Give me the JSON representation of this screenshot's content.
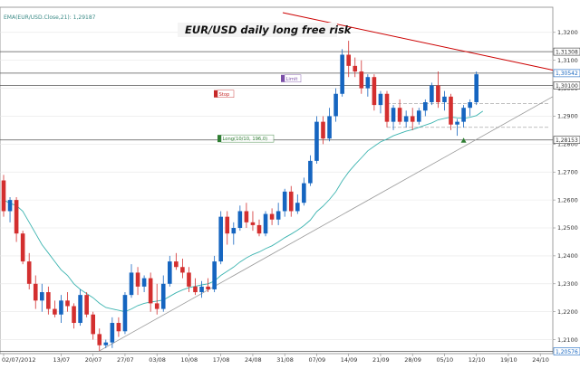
{
  "indicator_label": "EMA(EUR/USD.Close,21): 1,29187",
  "chart_data": {
    "type": "candlestick",
    "title": "EUR/USD daily long free risk",
    "xlabel": "",
    "ylabel": "",
    "ylim": [
      1.205,
      1.329
    ],
    "y_ticks": [
      "1,3200",
      "1,3100",
      "1,3000",
      "1,2900",
      "1,2800",
      "1,2700",
      "1,2600",
      "1,2500",
      "1,2400",
      "1,2300",
      "1,2200",
      "1,2100"
    ],
    "y_tick_values": [
      1.32,
      1.31,
      1.3,
      1.29,
      1.28,
      1.27,
      1.26,
      1.25,
      1.24,
      1.23,
      1.22,
      1.21
    ],
    "x_ticks": [
      "02/07/2012",
      "13/07",
      "20/07",
      "27/07",
      "03/08",
      "10/08",
      "17/08",
      "24/08",
      "31/08",
      "07/09",
      "14/09",
      "21/09",
      "28/09",
      "05/10",
      "12/10",
      "19/10",
      "24/10"
    ],
    "x_tick_index": [
      0,
      9,
      14,
      19,
      24,
      29,
      34,
      39,
      44,
      49,
      54,
      59,
      64,
      69,
      74,
      79,
      84
    ],
    "price_tags": [
      {
        "text": "1,31308",
        "value": 1.3131,
        "color": "#333333"
      },
      {
        "text": "1,30542",
        "value": 1.3054,
        "color": "#1565c0"
      },
      {
        "text": "1,30100",
        "value": 1.301,
        "color": "#333333"
      },
      {
        "text": "1,28153",
        "value": 1.2815,
        "color": "#333333"
      },
      {
        "text": "1,20576",
        "value": 1.2058,
        "color": "#1565c0"
      }
    ],
    "annotations": [
      {
        "text": "Limit",
        "value": 1.3035,
        "color": "#7b4fa8"
      },
      {
        "text": "Stop",
        "value": 1.298,
        "color": "#c62828"
      },
      {
        "text": "Long(10/10, 196,0)",
        "value": 1.282,
        "color": "#2e7d32"
      }
    ],
    "colors": {
      "up": "#1565c0",
      "down": "#d32f2f",
      "ema": "#3cb4b0",
      "trend": "#999999",
      "resistance": "#cc0000"
    },
    "candles": [
      [
        1.267,
        1.269,
        1.254,
        1.256
      ],
      [
        1.256,
        1.261,
        1.252,
        1.26
      ],
      [
        1.26,
        1.261,
        1.245,
        1.248
      ],
      [
        1.248,
        1.249,
        1.237,
        1.238
      ],
      [
        1.238,
        1.241,
        1.228,
        1.23
      ],
      [
        1.23,
        1.233,
        1.221,
        1.224
      ],
      [
        1.224,
        1.23,
        1.22,
        1.227
      ],
      [
        1.227,
        1.229,
        1.219,
        1.221
      ],
      [
        1.221,
        1.224,
        1.218,
        1.219
      ],
      [
        1.219,
        1.226,
        1.216,
        1.224
      ],
      [
        1.224,
        1.227,
        1.22,
        1.222
      ],
      [
        1.222,
        1.223,
        1.214,
        1.216
      ],
      [
        1.216,
        1.228,
        1.215,
        1.226
      ],
      [
        1.226,
        1.227,
        1.218,
        1.219
      ],
      [
        1.219,
        1.22,
        1.21,
        1.212
      ],
      [
        1.212,
        1.214,
        1.206,
        1.208
      ],
      [
        1.208,
        1.21,
        1.207,
        1.209
      ],
      [
        1.209,
        1.218,
        1.207,
        1.216
      ],
      [
        1.216,
        1.218,
        1.211,
        1.213
      ],
      [
        1.213,
        1.227,
        1.212,
        1.226
      ],
      [
        1.226,
        1.237,
        1.225,
        1.234
      ],
      [
        1.234,
        1.236,
        1.226,
        1.229
      ],
      [
        1.229,
        1.233,
        1.227,
        1.232
      ],
      [
        1.232,
        1.234,
        1.22,
        1.223
      ],
      [
        1.223,
        1.23,
        1.219,
        1.221
      ],
      [
        1.221,
        1.233,
        1.22,
        1.23
      ],
      [
        1.23,
        1.24,
        1.229,
        1.238
      ],
      [
        1.238,
        1.241,
        1.235,
        1.236
      ],
      [
        1.236,
        1.239,
        1.232,
        1.234
      ],
      [
        1.234,
        1.236,
        1.227,
        1.229
      ],
      [
        1.229,
        1.232,
        1.226,
        1.227
      ],
      [
        1.227,
        1.231,
        1.225,
        1.229
      ],
      [
        1.229,
        1.232,
        1.227,
        1.228
      ],
      [
        1.228,
        1.24,
        1.227,
        1.238
      ],
      [
        1.238,
        1.256,
        1.237,
        1.254
      ],
      [
        1.254,
        1.256,
        1.244,
        1.248
      ],
      [
        1.248,
        1.252,
        1.244,
        1.25
      ],
      [
        1.25,
        1.258,
        1.249,
        1.256
      ],
      [
        1.256,
        1.259,
        1.25,
        1.252
      ],
      [
        1.252,
        1.256,
        1.249,
        1.251
      ],
      [
        1.251,
        1.253,
        1.247,
        1.248
      ],
      [
        1.248,
        1.256,
        1.247,
        1.255
      ],
      [
        1.255,
        1.257,
        1.251,
        1.253
      ],
      [
        1.253,
        1.259,
        1.251,
        1.256
      ],
      [
        1.256,
        1.264,
        1.254,
        1.263
      ],
      [
        1.263,
        1.265,
        1.254,
        1.256
      ],
      [
        1.256,
        1.262,
        1.255,
        1.259
      ],
      [
        1.259,
        1.268,
        1.258,
        1.266
      ],
      [
        1.266,
        1.276,
        1.265,
        1.274
      ],
      [
        1.274,
        1.29,
        1.273,
        1.288
      ],
      [
        1.288,
        1.29,
        1.28,
        1.282
      ],
      [
        1.282,
        1.293,
        1.281,
        1.29
      ],
      [
        1.29,
        1.3,
        1.288,
        1.298
      ],
      [
        1.298,
        1.314,
        1.297,
        1.312
      ],
      [
        1.312,
        1.317,
        1.304,
        1.308
      ],
      [
        1.308,
        1.311,
        1.304,
        1.306
      ],
      [
        1.306,
        1.31,
        1.298,
        1.3
      ],
      [
        1.3,
        1.305,
        1.297,
        1.304
      ],
      [
        1.304,
        1.305,
        1.292,
        1.294
      ],
      [
        1.294,
        1.299,
        1.291,
        1.298
      ],
      [
        1.298,
        1.299,
        1.286,
        1.288
      ],
      [
        1.288,
        1.294,
        1.285,
        1.293
      ],
      [
        1.293,
        1.296,
        1.287,
        1.288
      ],
      [
        1.288,
        1.292,
        1.286,
        1.29
      ],
      [
        1.29,
        1.293,
        1.285,
        1.288
      ],
      [
        1.288,
        1.293,
        1.287,
        1.292
      ],
      [
        1.292,
        1.296,
        1.29,
        1.295
      ],
      [
        1.295,
        1.302,
        1.294,
        1.301
      ],
      [
        1.301,
        1.306,
        1.293,
        1.295
      ],
      [
        1.295,
        1.299,
        1.292,
        1.297
      ],
      [
        1.297,
        1.298,
        1.285,
        1.287
      ],
      [
        1.287,
        1.289,
        1.283,
        1.288
      ],
      [
        1.288,
        1.294,
        1.286,
        1.293
      ],
      [
        1.293,
        1.296,
        1.29,
        1.295
      ],
      [
        1.295,
        1.306,
        1.294,
        1.305
      ]
    ],
    "ema": [
      1.26,
      1.2588,
      1.258,
      1.256,
      1.252,
      1.248,
      1.244,
      1.241,
      1.238,
      1.235,
      1.233,
      1.23,
      1.228,
      1.2265,
      1.225,
      1.223,
      1.2215,
      1.221,
      1.2205,
      1.22,
      1.221,
      1.2222,
      1.223,
      1.2235,
      1.2238,
      1.2242,
      1.2255,
      1.2268,
      1.2278,
      1.2286,
      1.2291,
      1.2296,
      1.23,
      1.231,
      1.233,
      1.2345,
      1.236,
      1.2378,
      1.2393,
      1.2405,
      1.2414,
      1.2426,
      1.2436,
      1.245,
      1.2465,
      1.2478,
      1.2492,
      1.2508,
      1.2528,
      1.2558,
      1.2578,
      1.2602,
      1.263,
      1.2668,
      1.27,
      1.2727,
      1.2751,
      1.2776,
      1.2792,
      1.2808,
      1.2818,
      1.283,
      1.2838,
      1.2846,
      1.2852,
      1.286,
      1.2868,
      1.2876,
      1.2887,
      1.2892,
      1.2897,
      1.2894,
      1.2892,
      1.2896,
      1.2902,
      1.2918
    ]
  }
}
